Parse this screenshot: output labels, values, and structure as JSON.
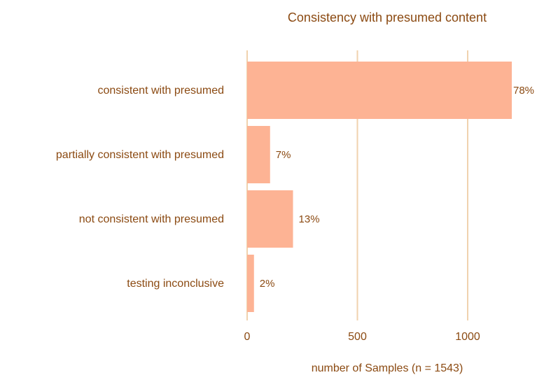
{
  "chart_data": {
    "type": "bar",
    "orientation": "horizontal",
    "title": "Consistency with presumed content",
    "xlabel": "number of Samples (n = 1543)",
    "ylabel": "",
    "categories": [
      "consistent with presumed",
      "partially consistent with presumed",
      "not consistent with presumed",
      "testing inconclusive"
    ],
    "values": [
      1200,
      104,
      208,
      31
    ],
    "data_labels": [
      "78%",
      "7%",
      "13%",
      "2%"
    ],
    "xlim": [
      0,
      1250
    ],
    "xticks": [
      0,
      500,
      1000
    ],
    "xtick_labels": [
      "0",
      "500",
      "1000"
    ],
    "grid": "vertical major",
    "legend": "none",
    "colors": {
      "bar": "#fdb394",
      "text": "#8b4a12",
      "grid": "#f0d2ae"
    }
  }
}
